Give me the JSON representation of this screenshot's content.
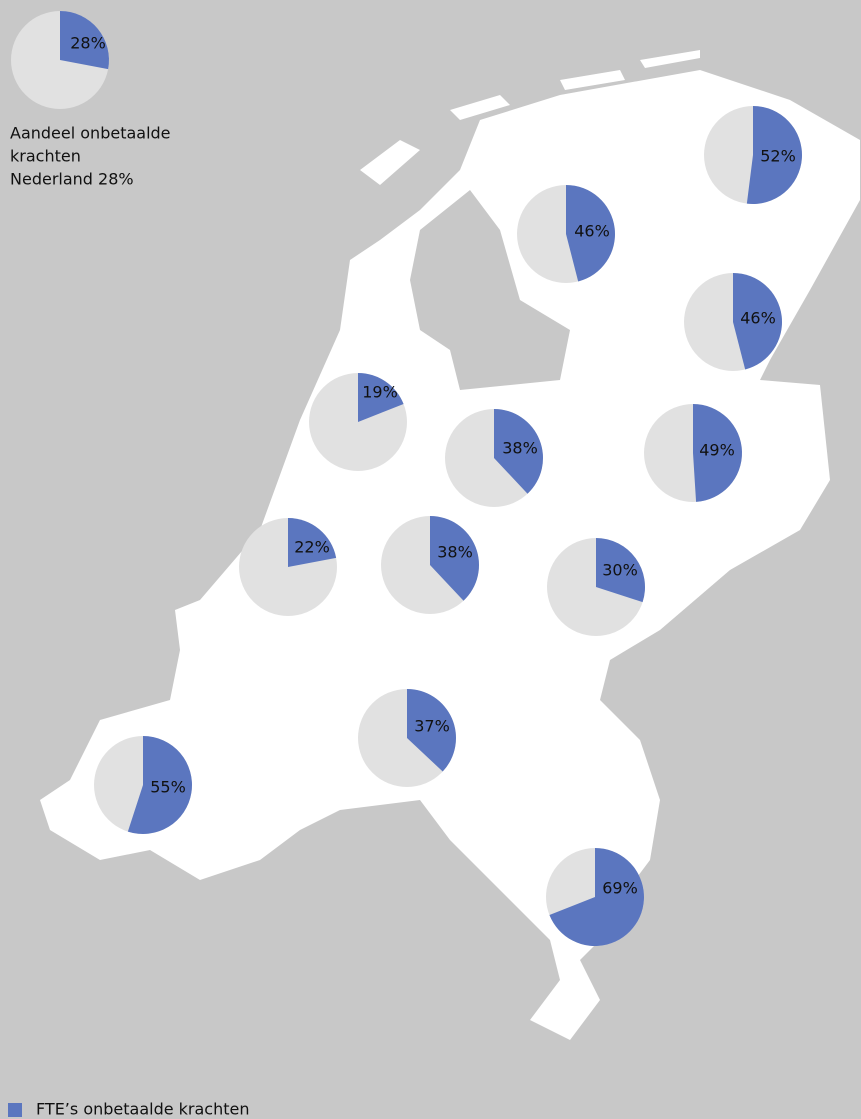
{
  "map": {
    "national": {
      "value": 28,
      "value_label": "28%",
      "note": [
        "Aandeel onbetaalde",
        "krachten",
        "Nederland 28%"
      ]
    },
    "regions": [
      {
        "value": 52,
        "value_label": "52%"
      },
      {
        "value": 46,
        "value_label": "46%"
      },
      {
        "value": 46,
        "value_label": "46%"
      },
      {
        "value": 19,
        "value_label": "19%"
      },
      {
        "value": 38,
        "value_label": "38%"
      },
      {
        "value": 49,
        "value_label": "49%"
      },
      {
        "value": 22,
        "value_label": "22%"
      },
      {
        "value": 38,
        "value_label": "38%"
      },
      {
        "value": 30,
        "value_label": "30%"
      },
      {
        "value": 37,
        "value_label": "37%"
      },
      {
        "value": 55,
        "value_label": "55%"
      },
      {
        "value": 69,
        "value_label": "69%"
      }
    ],
    "legend": "FTE’s onbetaalde krachten",
    "color": "#5b76bf",
    "rest_color": "#e1e1e1"
  }
}
